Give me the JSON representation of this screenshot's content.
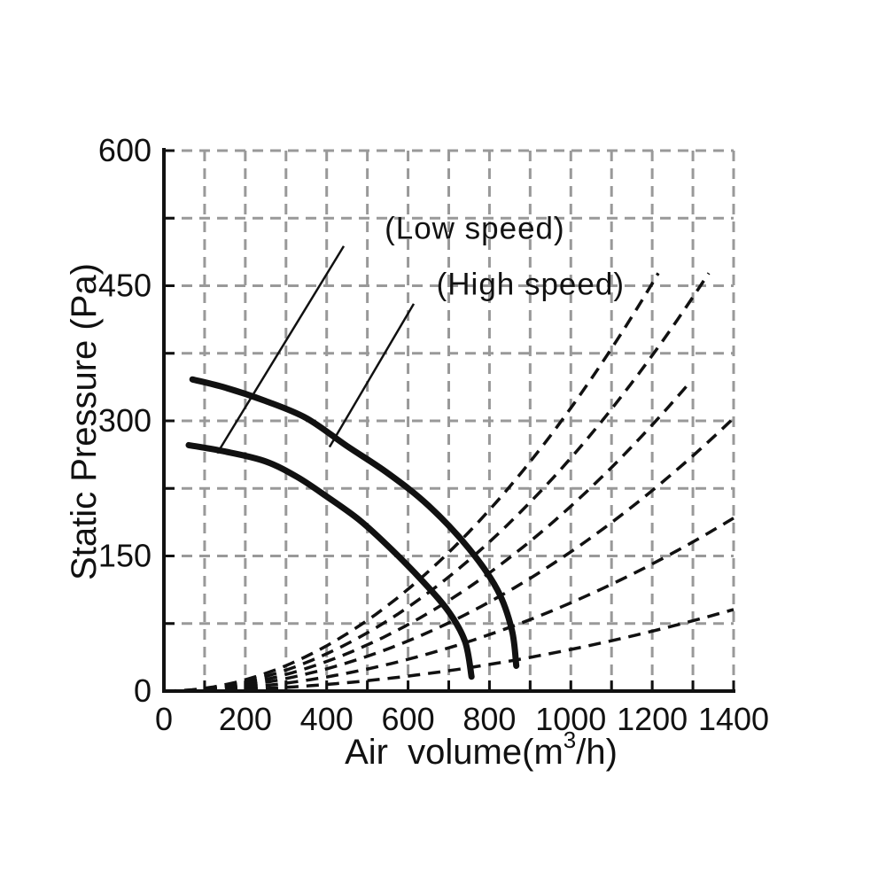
{
  "chart_data": {
    "type": "line",
    "title": "",
    "xlabel": "Air volume(m³/h)",
    "xlabel_parts": {
      "pre": "Air  volume(m",
      "sup": "3",
      "post": "/h)"
    },
    "ylabel": "Static Pressure (Pa)",
    "x_axis": {
      "min": 0,
      "max": 1400,
      "minor_step": 100,
      "label_step": 200,
      "tick_labels": [
        "0",
        "200",
        "400",
        "600",
        "800",
        "1000",
        "1200",
        "1400"
      ]
    },
    "y_axis": {
      "min": 0,
      "max": 600,
      "minor_step": 75,
      "label_step": 150,
      "tick_labels": [
        "0",
        "150",
        "300",
        "450",
        "600"
      ]
    },
    "grid": {
      "show": true,
      "style": "dashed"
    },
    "legend": {
      "position": "none"
    },
    "fan_curves": [
      {
        "name": "High speed",
        "style": "solid-thick",
        "points_q_p": [
          [
            70,
            346
          ],
          [
            150,
            337
          ],
          [
            250,
            322
          ],
          [
            350,
            303
          ],
          [
            450,
            272
          ],
          [
            550,
            242
          ],
          [
            650,
            206
          ],
          [
            750,
            158
          ],
          [
            820,
            112
          ],
          [
            855,
            68
          ],
          [
            866,
            28
          ]
        ]
      },
      {
        "name": "Low speed",
        "style": "solid-thick",
        "points_q_p": [
          [
            61,
            273
          ],
          [
            150,
            266
          ],
          [
            250,
            255
          ],
          [
            330,
            237
          ],
          [
            400,
            216
          ],
          [
            480,
            190
          ],
          [
            560,
            157
          ],
          [
            640,
            120
          ],
          [
            700,
            88
          ],
          [
            740,
            55
          ],
          [
            756,
            16
          ]
        ]
      }
    ],
    "system_resistance_curves": [
      {
        "name": "system-curve-1",
        "k_pa_per_q2": 0.0003143,
        "q_start": 0,
        "q_end": 1215
      },
      {
        "name": "system-curve-2",
        "k_pa_per_q2": 0.0002588,
        "q_start": 0,
        "q_end": 1339
      },
      {
        "name": "system-curve-3",
        "k_pa_per_q2": 0.0002052,
        "q_start": 0,
        "q_end": 1295
      },
      {
        "name": "system-curve-4",
        "k_pa_per_q2": 0.0001546,
        "q_start": 0,
        "q_end": 1400
      },
      {
        "name": "system-curve-5",
        "k_pa_per_q2": 9.8e-05,
        "q_start": 0,
        "q_end": 1400
      },
      {
        "name": "system-curve-6",
        "k_pa_per_q2": 4.62e-05,
        "q_start": 0,
        "q_end": 1400
      }
    ],
    "annotations": [
      {
        "text": "(Low speed)",
        "q": 764,
        "p": 514,
        "leader_from_q_p": [
          442,
          494
        ],
        "leader_to_q_p": [
          131,
          264
        ]
      },
      {
        "text": "(High speed)",
        "q": 901,
        "p": 452,
        "leader_from_q_p": [
          614,
          430
        ],
        "leader_to_q_p": [
          407,
          271
        ]
      }
    ],
    "colors": {
      "ink": "#111111",
      "grid": "#999999"
    }
  }
}
